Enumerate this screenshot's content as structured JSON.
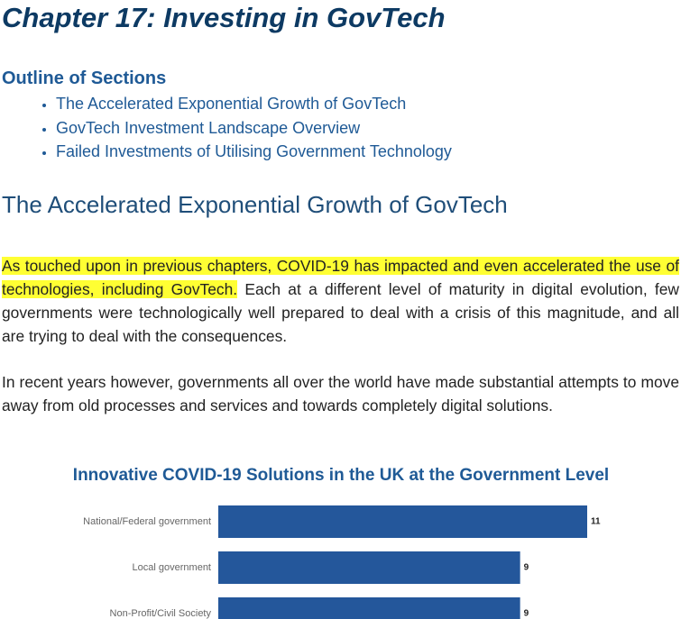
{
  "document": {
    "title": "Chapter 17: Investing in GovTech",
    "outline_heading": "Outline of Sections",
    "outline": [
      "The Accelerated Exponential Growth of GovTech",
      "GovTech Investment Landscape Overview",
      "Failed Investments of Utilising Government Technology"
    ],
    "section_heading": "The Accelerated Exponential Growth of GovTech",
    "paragraphs": [
      {
        "highlight": "As touched upon in previous chapters, COVID-19 has impacted and even accelerated the use of technologies, including GovTech.",
        "text": " Each at a different level of maturity in digital evolution, few governments were technologically well prepared to deal with a crisis of this magnitude, and all are trying to deal with the consequences."
      },
      {
        "text": "In recent years however, governments all over the world have made substantial attempts to move away from old processes and services and towards completely digital solutions."
      }
    ]
  },
  "chart_data": {
    "type": "bar",
    "orientation": "horizontal",
    "title": "Innovative COVID-19 Solutions in the UK at the Government Level",
    "categories": [
      "National/Federal government",
      "Local government",
      "Non-Profit/Civil Society"
    ],
    "values": [
      11,
      9,
      9
    ],
    "color": "#24579b"
  }
}
